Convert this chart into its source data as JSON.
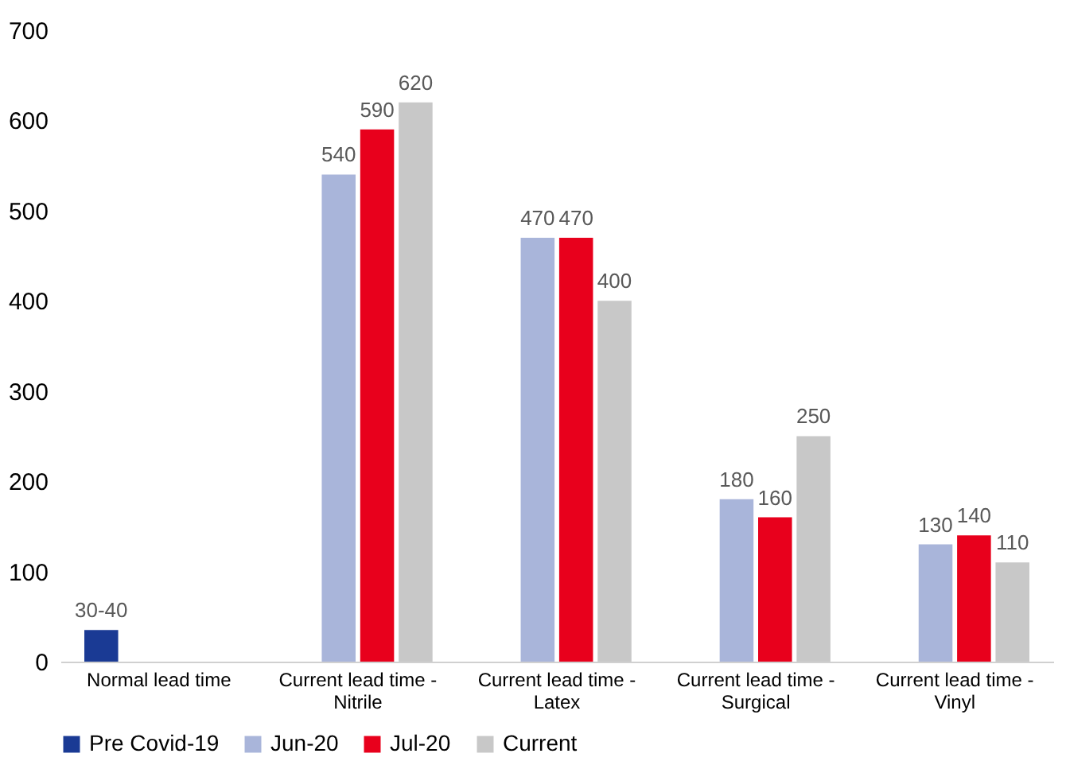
{
  "chart_data": {
    "type": "bar",
    "categories": [
      "Normal lead time",
      "Current lead time - Nitrile",
      "Current lead time - Latex",
      "Current lead time - Surgical",
      "Current lead time - Vinyl"
    ],
    "series": [
      {
        "name": "Pre Covid-19",
        "color": "#1a3a94",
        "values": [
          35,
          null,
          null,
          null,
          null
        ],
        "value_labels": [
          "30-40",
          null,
          null,
          null,
          null
        ]
      },
      {
        "name": "Jun-20",
        "color": "#a9b5da",
        "values": [
          null,
          540,
          470,
          180,
          130
        ],
        "value_labels": [
          null,
          "540",
          "470",
          "180",
          "130"
        ]
      },
      {
        "name": "Jul-20",
        "color": "#e8001c",
        "values": [
          null,
          590,
          470,
          160,
          140
        ],
        "value_labels": [
          null,
          "590",
          "470",
          "160",
          "140"
        ]
      },
      {
        "name": "Current",
        "color": "#c8c8c8",
        "values": [
          null,
          620,
          400,
          250,
          110
        ],
        "value_labels": [
          null,
          "620",
          "400",
          "250",
          "110"
        ]
      }
    ],
    "ylim": [
      0,
      700
    ],
    "yticks": [
      0,
      100,
      200,
      300,
      400,
      500,
      600,
      700
    ],
    "grid": false,
    "legend": "bottom"
  }
}
